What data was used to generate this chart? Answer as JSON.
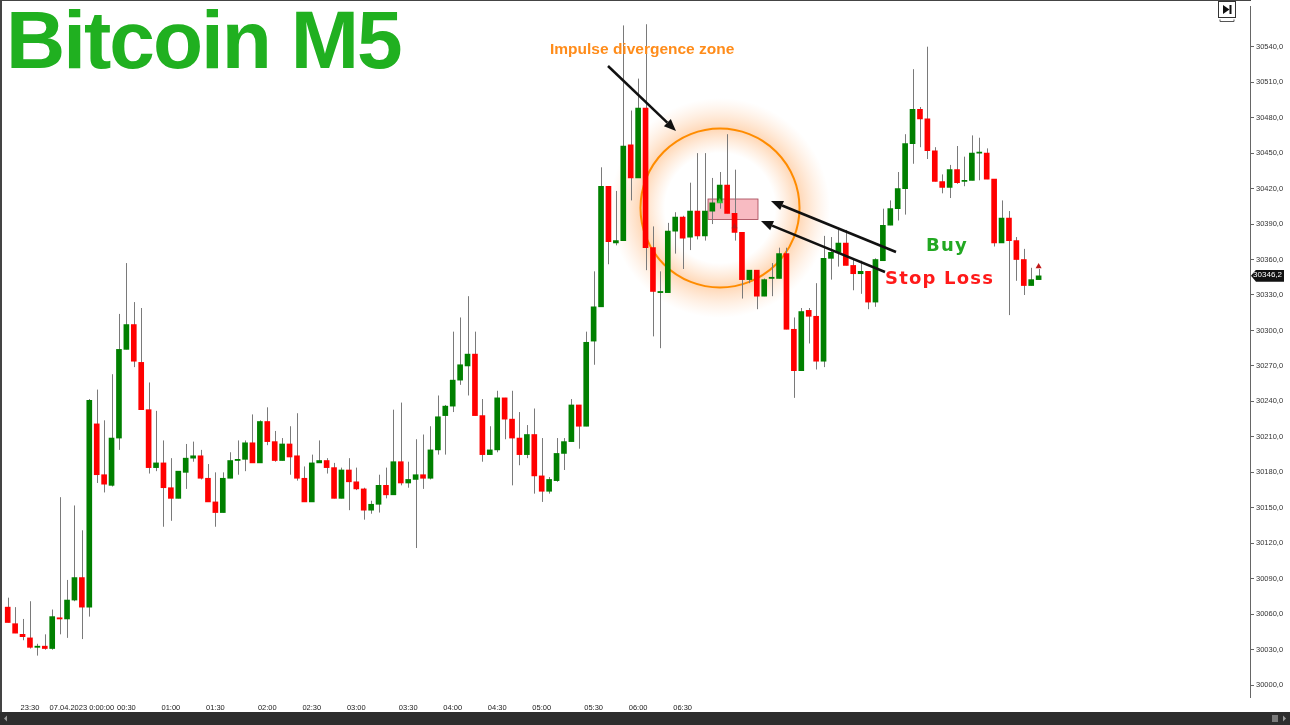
{
  "chart_data": {
    "type": "candlestick",
    "title": "Bitcoin M5",
    "categories": [
      null,
      null,
      null,
      "23:30",
      null,
      null,
      null,
      null,
      null,
      null,
      "07.04.2023 0:00:00",
      null,
      null,
      null,
      null,
      null,
      "00:30",
      null,
      null,
      null,
      null,
      null,
      "01:00",
      null,
      null,
      null,
      null,
      null,
      "01:30",
      null,
      null,
      null,
      null,
      null,
      null,
      "02:00",
      null,
      null,
      null,
      null,
      null,
      "02:30",
      null,
      null,
      null,
      null,
      null,
      "03:00",
      null,
      null,
      null,
      null,
      null,
      null,
      "03:30",
      null,
      null,
      null,
      null,
      null,
      "04:00",
      null,
      null,
      null,
      null,
      null,
      "04:30",
      null,
      null,
      null,
      null,
      null,
      "05:00",
      null,
      null,
      null,
      null,
      null,
      null,
      "05:30",
      null,
      null,
      null,
      null,
      null,
      "06:00",
      null,
      null,
      null,
      null,
      null,
      "06:30",
      null,
      null,
      null,
      null,
      null,
      null,
      null,
      null,
      null,
      null,
      null,
      null,
      null,
      null,
      null,
      null,
      null,
      null,
      null,
      null,
      null,
      null,
      null,
      null,
      null,
      null,
      null,
      null,
      null,
      null,
      null,
      null,
      null,
      null,
      null,
      null,
      null,
      null,
      null,
      null,
      null,
      null,
      null,
      null,
      null,
      null,
      null,
      null,
      null,
      null,
      null,
      null,
      null,
      null,
      null,
      null,
      null,
      null,
      null,
      null,
      null,
      null,
      null,
      null,
      null,
      null,
      null,
      null,
      null,
      null,
      null,
      null,
      null,
      null,
      null,
      null
    ],
    "ohlc": [
      [
        30066,
        30074,
        30053,
        30053
      ],
      [
        30052,
        30066,
        30044,
        30044
      ],
      [
        30043,
        30056,
        30038,
        30041
      ],
      [
        30040,
        30071,
        30031,
        30032
      ],
      [
        30032,
        30035,
        30025,
        30033
      ],
      [
        30033,
        30043,
        30030,
        30031
      ],
      [
        30031,
        30064,
        30030,
        30058
      ],
      [
        30057,
        30159,
        30043,
        30056
      ],
      [
        30056,
        30089,
        30040,
        30072
      ],
      [
        30072,
        30152,
        30071,
        30091
      ],
      [
        30091,
        30131,
        30039,
        30066
      ],
      [
        30066,
        30242,
        30058,
        30241
      ],
      [
        30221,
        30250,
        30171,
        30178
      ],
      [
        30178,
        30224,
        30163,
        30170
      ],
      [
        30169,
        30263,
        30168,
        30209
      ],
      [
        30209,
        30314,
        30199,
        30284
      ],
      [
        30284,
        30357,
        30284,
        30305
      ],
      [
        30305,
        30324,
        30269,
        30274
      ],
      [
        30273,
        30319,
        30233,
        30233
      ],
      [
        30233,
        30256,
        30179,
        30184
      ],
      [
        30184,
        30232,
        30181,
        30188
      ],
      [
        30188,
        30207,
        30134,
        30167
      ],
      [
        30167,
        30192,
        30139,
        30158
      ],
      [
        30158,
        30181,
        30158,
        30181
      ],
      [
        30180,
        30204,
        30166,
        30192
      ],
      [
        30192,
        30206,
        30189,
        30194
      ],
      [
        30194,
        30199,
        30174,
        30175
      ],
      [
        30175,
        30187,
        30155,
        30155
      ],
      [
        30155,
        30180,
        30134,
        30146
      ],
      [
        30146,
        30180,
        30146,
        30175
      ],
      [
        30175,
        30197,
        30175,
        30190
      ],
      [
        30190,
        30207,
        30178,
        30191
      ],
      [
        30191,
        30207,
        30181,
        30205
      ],
      [
        30205,
        30229,
        30188,
        30188
      ],
      [
        30188,
        30224,
        30188,
        30223
      ],
      [
        30223,
        30235,
        30203,
        30206
      ],
      [
        30206,
        30215,
        30189,
        30190
      ],
      [
        30190,
        30209,
        30190,
        30204
      ],
      [
        30204,
        30219,
        30178,
        30193
      ],
      [
        30194,
        30230,
        30173,
        30175
      ],
      [
        30175,
        30185,
        30155,
        30155
      ],
      [
        30155,
        30195,
        30155,
        30188
      ],
      [
        30188,
        30207,
        30188,
        30190
      ],
      [
        30190,
        30192,
        30179,
        30184
      ],
      [
        30184,
        30188,
        30158,
        30158
      ],
      [
        30158,
        30184,
        30158,
        30182
      ],
      [
        30182,
        30192,
        30148,
        30172
      ],
      [
        30172,
        30184,
        30165,
        30166
      ],
      [
        30166,
        30167,
        30140,
        30148
      ],
      [
        30148,
        30156,
        30145,
        30153
      ],
      [
        30153,
        30178,
        30146,
        30169
      ],
      [
        30169,
        30184,
        30158,
        30161
      ],
      [
        30161,
        30233,
        30161,
        30189
      ],
      [
        30189,
        30239,
        30169,
        30171
      ],
      [
        30171,
        30189,
        30167,
        30174
      ],
      [
        30174,
        30208,
        30116,
        30178
      ],
      [
        30178,
        30212,
        30166,
        30175
      ],
      [
        30175,
        30219,
        30174,
        30199
      ],
      [
        30199,
        30245,
        30195,
        30227
      ],
      [
        30228,
        30237,
        30195,
        30236
      ],
      [
        30236,
        30299,
        30231,
        30258
      ],
      [
        30258,
        30311,
        30254,
        30271
      ],
      [
        30270,
        30329,
        30245,
        30280
      ],
      [
        30280,
        30299,
        30228,
        30228
      ],
      [
        30228,
        30242,
        30189,
        30195
      ],
      [
        30195,
        30219,
        30195,
        30199
      ],
      [
        30199,
        30249,
        30197,
        30243
      ],
      [
        30243,
        30243,
        30208,
        30225
      ],
      [
        30225,
        30249,
        30169,
        30209
      ],
      [
        30209,
        30231,
        30186,
        30195
      ],
      [
        30195,
        30220,
        30192,
        30212
      ],
      [
        30212,
        30234,
        30162,
        30177
      ],
      [
        30177,
        30209,
        30155,
        30164
      ],
      [
        30164,
        30176,
        30162,
        30174
      ],
      [
        30173,
        30209,
        30172,
        30196
      ],
      [
        30196,
        30209,
        30182,
        30206
      ],
      [
        30206,
        30242,
        30206,
        30237
      ],
      [
        30237,
        30237,
        30200,
        30219
      ],
      [
        30219,
        30299,
        30219,
        30290
      ],
      [
        30291,
        30350,
        30271,
        30320
      ],
      [
        30320,
        30438,
        30320,
        30422
      ],
      [
        30422,
        30422,
        30356,
        30375
      ],
      [
        30374,
        30418,
        30372,
        30376
      ],
      [
        30376,
        30558,
        30376,
        30456
      ],
      [
        30457,
        30486,
        30410,
        30429
      ],
      [
        30429,
        30513,
        30429,
        30488
      ],
      [
        30488,
        30559,
        30351,
        30370
      ],
      [
        30370,
        30388,
        30295,
        30333
      ],
      [
        30332,
        30350,
        30285,
        30333
      ],
      [
        30332,
        30391,
        30332,
        30384
      ],
      [
        30384,
        30400,
        30365,
        30396
      ],
      [
        30396,
        30397,
        30352,
        30378
      ],
      [
        30379,
        30425,
        30368,
        30401
      ],
      [
        30401,
        30450,
        30377,
        30380
      ],
      [
        30380,
        30450,
        30376,
        30401
      ],
      [
        30401,
        30429,
        30390,
        30408
      ],
      [
        30408,
        30434,
        30403,
        30423
      ],
      [
        30423,
        30466,
        30399,
        30399
      ],
      [
        30399,
        30436,
        30376,
        30383
      ],
      [
        30383,
        30383,
        30327,
        30343
      ],
      [
        30343,
        30351,
        30340,
        30351
      ],
      [
        30351,
        30351,
        30318,
        30329
      ],
      [
        30329,
        30344,
        30329,
        30343
      ],
      [
        30344,
        30357,
        30329,
        30345
      ],
      [
        30344,
        30370,
        30344,
        30365
      ],
      [
        30365,
        30370,
        30301,
        30301
      ],
      [
        30301,
        30311,
        30243,
        30266
      ],
      [
        30266,
        30319,
        30266,
        30316
      ],
      [
        30317,
        30319,
        30289,
        30312
      ],
      [
        30312,
        30340,
        30267,
        30274
      ],
      [
        30274,
        30380,
        30269,
        30361
      ],
      [
        30361,
        30379,
        30343,
        30366
      ],
      [
        30366,
        30385,
        30354,
        30374
      ],
      [
        30374,
        30385,
        30355,
        30355
      ],
      [
        30355,
        30361,
        30334,
        30348
      ],
      [
        30348,
        30359,
        30331,
        30350
      ],
      [
        30350,
        30350,
        30318,
        30324
      ],
      [
        30324,
        30361,
        30320,
        30360
      ],
      [
        30359,
        30403,
        30359,
        30389
      ],
      [
        30389,
        30410,
        30389,
        30403
      ],
      [
        30403,
        30434,
        30393,
        30420
      ],
      [
        30420,
        30466,
        30398,
        30458
      ],
      [
        30458,
        30521,
        30441,
        30487
      ],
      [
        30487,
        30489,
        30455,
        30479
      ],
      [
        30479,
        30540,
        30445,
        30452
      ],
      [
        30452,
        30455,
        30426,
        30426
      ],
      [
        30426,
        30432,
        30416,
        30421
      ],
      [
        30421,
        30440,
        30412,
        30436
      ],
      [
        30436,
        30456,
        30424,
        30425
      ],
      [
        30426,
        30447,
        30422,
        30427
      ],
      [
        30427,
        30465,
        30427,
        30450
      ],
      [
        30450,
        30463,
        30427,
        30450
      ],
      [
        30450,
        30454,
        30428,
        30428
      ],
      [
        30428,
        30428,
        30371,
        30374
      ],
      [
        30374,
        30410,
        30374,
        30395
      ],
      [
        30395,
        30401,
        30313,
        30376
      ],
      [
        30376,
        30379,
        30342,
        30360
      ],
      [
        30360,
        30369,
        30330,
        30338
      ],
      [
        30338,
        30353,
        30338,
        30343
      ],
      [
        30343,
        30352,
        30343,
        30346.2
      ],
      null,
      null,
      null,
      null,
      null,
      null,
      null,
      null,
      null,
      null,
      null,
      null,
      null,
      null,
      null,
      null,
      null,
      null,
      null,
      null,
      null,
      null,
      null,
      null,
      null,
      null,
      null,
      null
    ],
    "colors": [
      "#ff0000",
      "#ff0000",
      "#ff0000",
      "#ff0000",
      "#008000",
      "#ff0000",
      "#008000",
      "#ff0000",
      "#008000",
      "#008000",
      "#ff0000",
      "#008000",
      "#ff0000",
      "#ff0000",
      "#008000",
      "#008000",
      "#008000",
      "#ff0000",
      "#ff0000",
      "#ff0000",
      "#008000",
      "#ff0000",
      "#ff0000",
      "#008000",
      "#008000",
      "#008000",
      "#ff0000",
      "#ff0000",
      "#ff0000",
      "#008000",
      "#008000",
      "#008000",
      "#008000",
      "#ff0000",
      "#008000",
      "#ff0000",
      "#ff0000",
      "#008000",
      "#ff0000",
      "#ff0000",
      "#ff0000",
      "#008000",
      "#008000",
      "#ff0000",
      "#ff0000",
      "#008000",
      "#ff0000",
      "#ff0000",
      "#ff0000",
      "#008000",
      "#008000",
      "#ff0000",
      "#008000",
      "#ff0000",
      "#008000",
      "#008000",
      "#ff0000",
      "#008000",
      "#008000",
      "#008000",
      "#008000",
      "#008000",
      "#008000",
      "#ff0000",
      "#ff0000",
      "#008000",
      "#008000",
      "#ff0000",
      "#ff0000",
      "#ff0000",
      "#008000",
      "#ff0000",
      "#ff0000",
      "#008000",
      "#008000",
      "#008000",
      "#008000",
      "#ff0000",
      "#008000",
      "#008000",
      "#008000",
      "#ff0000",
      "#008000",
      "#008000",
      "#ff0000",
      "#008000",
      "#ff0000",
      "#ff0000",
      "#008000",
      "#008000",
      "#008000",
      "#ff0000",
      "#008000",
      "#ff0000",
      "#008000",
      "#008000",
      "#008000",
      "#ff0000",
      "#ff0000",
      "#ff0000",
      "#008000",
      "#ff0000",
      "#008000",
      "#008000",
      "#008000",
      "#ff0000",
      "#ff0000",
      "#008000",
      "#ff0000",
      "#ff0000",
      "#008000",
      "#008000",
      "#008000",
      "#ff0000",
      "#ff0000",
      "#008000",
      "#ff0000",
      "#008000",
      "#008000",
      "#008000",
      "#008000",
      "#008000",
      "#008000",
      "#ff0000",
      "#ff0000",
      "#ff0000",
      "#ff0000",
      "#008000",
      "#ff0000",
      "#008000",
      "#008000",
      "#008000",
      "#ff0000",
      "#ff0000",
      "#008000",
      "#ff0000",
      "#ff0000",
      "#ff0000",
      "#008000",
      "#008000",
      null,
      null,
      null,
      null,
      null,
      null,
      null,
      null,
      null,
      null,
      null,
      null,
      null,
      null,
      null,
      null,
      null,
      null,
      null,
      null,
      null,
      null,
      null,
      null,
      null,
      null,
      null,
      null
    ],
    "series": [
      {
        "type": "scatter",
        "color": "#33cc33",
        "values": [
          null,
          null,
          null,
          null,
          null,
          null,
          null,
          null,
          null,
          null,
          null,
          null,
          null,
          null,
          null,
          null,
          null,
          null,
          null,
          null,
          null,
          null,
          null,
          null,
          null,
          null,
          null,
          null,
          null,
          null,
          null,
          null,
          null,
          null,
          null,
          null,
          null,
          null,
          null,
          null,
          null,
          null,
          null,
          null,
          null,
          null,
          null,
          null,
          null,
          null,
          null,
          null,
          null,
          null,
          null,
          null,
          null,
          null,
          null,
          null,
          null,
          null,
          null,
          null,
          null,
          null,
          null,
          null,
          null,
          null,
          null,
          null,
          null,
          null,
          null,
          null,
          null,
          null,
          null,
          null,
          null,
          null,
          null,
          null,
          null,
          null,
          null,
          null,
          null,
          null,
          null,
          null,
          null,
          null,
          null,
          null,
          30409,
          null,
          null,
          null,
          null,
          null,
          null,
          null,
          null,
          null,
          null,
          null,
          null,
          null,
          null,
          null,
          null,
          null,
          null,
          null,
          null,
          null,
          null,
          null,
          null,
          null,
          null,
          null,
          null,
          null,
          null,
          null,
          null,
          null,
          null,
          null,
          null,
          null,
          null,
          null,
          null,
          null,
          null,
          null,
          null,
          null,
          null,
          null,
          null,
          null,
          null,
          null,
          null,
          null,
          null,
          null,
          null,
          null,
          null,
          null,
          null,
          null,
          null,
          null,
          null,
          null,
          null,
          null,
          null,
          null,
          null,
          null
        ]
      },
      {
        "type": "scatter",
        "color": "#c01818",
        "values": [
          null,
          null,
          null,
          null,
          null,
          null,
          null,
          null,
          null,
          null,
          null,
          null,
          null,
          null,
          null,
          null,
          null,
          null,
          null,
          null,
          null,
          null,
          null,
          null,
          null,
          null,
          null,
          null,
          null,
          null,
          null,
          null,
          null,
          null,
          null,
          null,
          null,
          null,
          null,
          null,
          null,
          null,
          null,
          null,
          null,
          null,
          null,
          null,
          null,
          null,
          null,
          null,
          null,
          null,
          null,
          null,
          null,
          null,
          null,
          null,
          null,
          null,
          null,
          null,
          null,
          null,
          null,
          null,
          null,
          null,
          null,
          null,
          null,
          null,
          null,
          null,
          null,
          null,
          null,
          null,
          null,
          null,
          null,
          null,
          null,
          null,
          null,
          null,
          null,
          null,
          null,
          null,
          null,
          null,
          null,
          null,
          null,
          null,
          30388,
          null,
          null,
          null,
          null,
          null,
          null,
          null,
          null,
          null,
          null,
          null,
          null,
          null,
          null,
          null,
          null,
          null,
          null,
          null,
          null,
          null,
          null,
          null,
          null,
          null,
          null,
          null,
          null,
          null,
          null,
          null,
          null,
          null,
          null,
          null,
          null,
          null,
          null,
          null,
          null,
          30354,
          null,
          null,
          null,
          null,
          null,
          null,
          null,
          null,
          null,
          null,
          null,
          null,
          null,
          null,
          null,
          null,
          null,
          null,
          null,
          null,
          null,
          null,
          null,
          null,
          null,
          null,
          null,
          null
        ]
      }
    ],
    "marker": "triangle",
    "ylim": [
      29990,
      30574
    ],
    "yticks": [
      {
        "value": 30000,
        "label": "30000,0"
      },
      {
        "value": 30030,
        "label": "30030,0"
      },
      {
        "value": 30060,
        "label": "30060,0"
      },
      {
        "value": 30090,
        "label": "30090,0"
      },
      {
        "value": 30120,
        "label": "30120,0"
      },
      {
        "value": 30150,
        "label": "30150,0"
      },
      {
        "value": 30180,
        "label": "30180,0"
      },
      {
        "value": 30210,
        "label": "30210,0"
      },
      {
        "value": 30240,
        "label": "30240,0"
      },
      {
        "value": 30270,
        "label": "30270,0"
      },
      {
        "value": 30300,
        "label": "30300,0"
      },
      {
        "value": 30330,
        "label": "30330,0"
      },
      {
        "value": 30360,
        "label": "30360,0"
      },
      {
        "value": 30390,
        "label": "30390,0"
      },
      {
        "value": 30420,
        "label": "30420,0"
      },
      {
        "value": 30450,
        "label": "30450,0"
      },
      {
        "value": 30480,
        "label": "30480,0"
      },
      {
        "value": 30510,
        "label": "30510,0"
      },
      {
        "value": 30540,
        "label": "30540,0"
      }
    ],
    "annotations": [
      "Impulse divergence zone",
      "Buy",
      "Stop Loss",
      {
        "text": "30346,2",
        "y": 30346.2
      }
    ]
  }
}
